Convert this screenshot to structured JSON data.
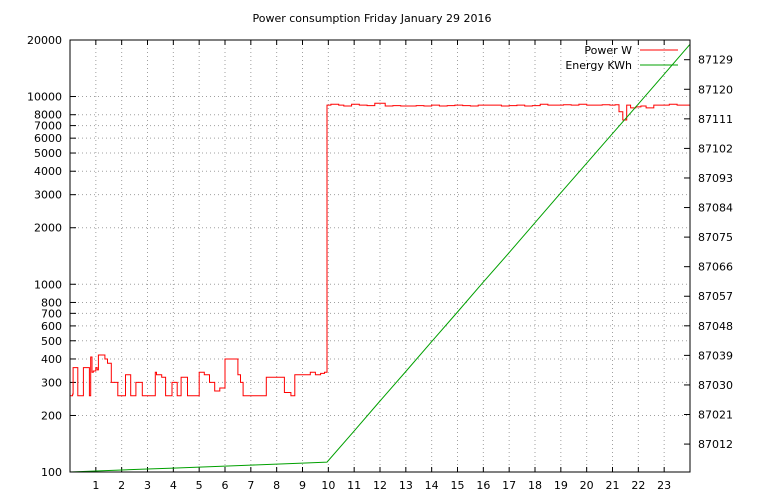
{
  "chart_data": {
    "type": "line",
    "title": "Power consumption Friday January 29 2016",
    "xlabel": "",
    "x_ticks": [
      "1",
      "2",
      "3",
      "4",
      "5",
      "6",
      "7",
      "8",
      "9",
      "10",
      "11",
      "12",
      "13",
      "14",
      "15",
      "16",
      "17",
      "18",
      "19",
      "20",
      "21",
      "22",
      "23"
    ],
    "xlim": [
      0,
      24
    ],
    "y_axis_left": {
      "scale": "log",
      "ylim": [
        100,
        20000
      ],
      "ticks": [
        100,
        200,
        300,
        400,
        500,
        600,
        700,
        800,
        1000,
        2000,
        3000,
        4000,
        5000,
        6000,
        7000,
        8000,
        10000,
        20000
      ]
    },
    "y_axis_right": {
      "scale": "linear",
      "ylim": [
        87003.5,
        87135
      ],
      "ticks": [
        87012,
        87021,
        87030,
        87039,
        87048,
        87057,
        87066,
        87075,
        87084,
        87093,
        87102,
        87111,
        87120,
        87129
      ]
    },
    "grid": true,
    "legend_position": "top-right",
    "series": [
      {
        "name": "Power W",
        "color": "#ff0000",
        "axis": "left",
        "x": [
          0,
          0.1,
          0.12,
          0.3,
          0.35,
          0.5,
          0.52,
          0.75,
          0.8,
          0.85,
          0.9,
          1.0,
          1.05,
          1.1,
          1.35,
          1.45,
          1.6,
          1.85,
          2.0,
          2.15,
          2.35,
          2.55,
          2.8,
          3.1,
          3.3,
          3.35,
          3.55,
          3.7,
          3.9,
          3.95,
          4.15,
          4.3,
          4.55,
          4.7,
          5.0,
          5.2,
          5.4,
          5.6,
          5.8,
          6.0,
          6.3,
          6.5,
          6.6,
          6.7,
          6.9,
          7.2,
          7.35,
          7.6,
          7.8,
          8.1,
          8.3,
          8.55,
          8.7,
          9.0,
          9.3,
          9.5,
          9.7,
          9.85,
          9.9,
          9.95,
          10.1,
          10.4,
          10.6,
          10.9,
          11.2,
          11.5,
          11.8,
          12.2,
          12.5,
          12.8,
          13.1,
          13.4,
          13.7,
          14.0,
          14.3,
          14.6,
          14.9,
          15.2,
          15.5,
          15.8,
          16.1,
          16.4,
          16.7,
          17.0,
          17.3,
          17.6,
          17.9,
          18.2,
          18.5,
          18.8,
          19.1,
          19.4,
          19.7,
          20.0,
          20.3,
          20.6,
          20.9,
          21.1,
          21.25,
          21.4,
          21.55,
          21.7,
          21.9,
          22.1,
          22.3,
          22.6,
          22.9,
          23.2,
          23.5,
          23.8,
          24.0
        ],
        "values": [
          255,
          260,
          360,
          255,
          255,
          255,
          360,
          255,
          410,
          340,
          345,
          360,
          350,
          420,
          400,
          380,
          300,
          255,
          255,
          330,
          255,
          300,
          255,
          255,
          340,
          330,
          320,
          255,
          255,
          300,
          255,
          320,
          255,
          255,
          340,
          330,
          300,
          270,
          280,
          400,
          400,
          330,
          300,
          255,
          255,
          255,
          255,
          320,
          320,
          320,
          265,
          255,
          330,
          330,
          340,
          330,
          335,
          340,
          340,
          9000,
          9100,
          9000,
          8900,
          9100,
          9000,
          8950,
          9200,
          8900,
          8950,
          8900,
          8900,
          8950,
          8900,
          9000,
          8900,
          8950,
          9000,
          8950,
          8900,
          9000,
          9000,
          9000,
          8900,
          8950,
          9000,
          8900,
          8950,
          9100,
          9000,
          9000,
          9050,
          9000,
          9100,
          9000,
          9000,
          9050,
          9000,
          9050,
          8300,
          7500,
          9000,
          8700,
          8800,
          8900,
          8700,
          9000,
          9000,
          9100,
          9000,
          9000,
          9100
        ]
      },
      {
        "name": "Energy KWh",
        "color": "#00a000",
        "axis": "right",
        "x": [
          0,
          1,
          2,
          3,
          4,
          5,
          6,
          7,
          8,
          9,
          9.6,
          9.95,
          11,
          12,
          13,
          14,
          15,
          16,
          17,
          18,
          19,
          20,
          21,
          22,
          23,
          24
        ],
        "values": [
          87003.5,
          87003.8,
          87004.1,
          87004.4,
          87004.7,
          87005.0,
          87005.3,
          87005.6,
          87005.9,
          87006.2,
          87006.4,
          87006.5,
          87016.0,
          87025.1,
          87034.1,
          87043.2,
          87052.2,
          87061.3,
          87070.3,
          87079.4,
          87088.5,
          87097.5,
          87106.5,
          87115.5,
          87124.6,
          87133.7
        ]
      }
    ]
  }
}
